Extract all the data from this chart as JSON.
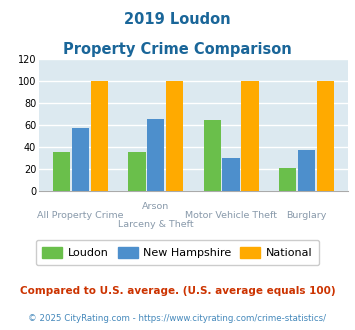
{
  "title_line1": "2019 Loudon",
  "title_line2": "Property Crime Comparison",
  "cat_labels_line1": [
    "All Property Crime",
    "Arson",
    "Motor Vehicle Theft",
    "Burglary"
  ],
  "cat_labels_line2": [
    "",
    "Larceny & Theft",
    "",
    ""
  ],
  "loudon": [
    36,
    36,
    65,
    21
  ],
  "new_hampshire": [
    58,
    66,
    30,
    38
  ],
  "national": [
    100,
    100,
    100,
    100
  ],
  "colors": {
    "loudon": "#6abf4b",
    "new_hampshire": "#4d8fcc",
    "national": "#ffaa00"
  },
  "ylim": [
    0,
    120
  ],
  "yticks": [
    0,
    20,
    40,
    60,
    80,
    100,
    120
  ],
  "title_color": "#1a6699",
  "plot_bg": "#dce9f0",
  "grid_color": "#b0c8d8",
  "label_color": "#8899aa",
  "footnote1": "Compared to U.S. average. (U.S. average equals 100)",
  "footnote2": "© 2025 CityRating.com - https://www.cityrating.com/crime-statistics/",
  "footnote1_color": "#cc3300",
  "footnote2_color": "#4488bb"
}
